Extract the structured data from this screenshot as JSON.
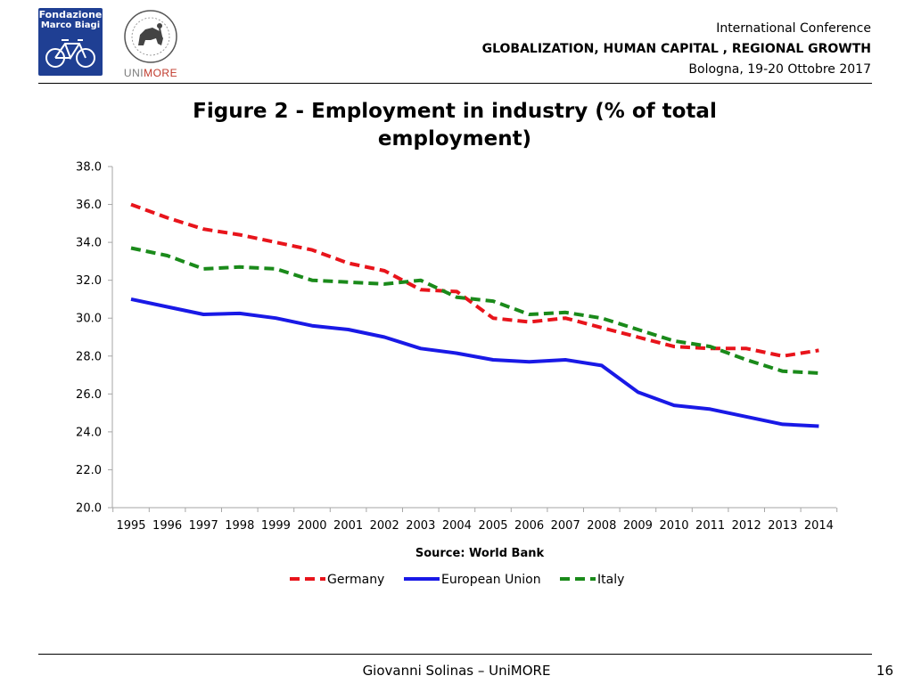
{
  "header": {
    "logo_left": {
      "line1": "Fondazione",
      "line2": "Marco Biagi"
    },
    "logo_right": {
      "prefix": "UNI",
      "suffix": "MORE"
    },
    "line1": "International Conference",
    "line2": "GLOBALIZATION, HUMAN CAPITAL , REGIONAL GROWTH",
    "line3": "Bologna, 19-20 Ottobre 2017"
  },
  "figure": {
    "title": "Figure 2 - Employment in industry (% of total employment)"
  },
  "chart_data": {
    "type": "line",
    "title": "Figure 2 - Employment in industry (% of total employment)",
    "xlabel": "Source: World Bank",
    "ylabel": "",
    "categories": [
      "1995",
      "1996",
      "1997",
      "1998",
      "1999",
      "2000",
      "2001",
      "2002",
      "2003",
      "2004",
      "2005",
      "2006",
      "2007",
      "2008",
      "2009",
      "2010",
      "2011",
      "2012",
      "2013",
      "2014"
    ],
    "ylim": [
      20,
      38
    ],
    "yticks": [
      "20.0",
      "22.0",
      "24.0",
      "26.0",
      "28.0",
      "30.0",
      "32.0",
      "34.0",
      "36.0",
      "38.0"
    ],
    "grid": false,
    "legend_position": "bottom",
    "series": [
      {
        "name": "Germany",
        "color": "#e8141b",
        "style": "dashed",
        "values": [
          36.0,
          35.3,
          34.7,
          34.4,
          34.0,
          33.6,
          32.9,
          32.5,
          31.5,
          31.4,
          30.0,
          29.8,
          30.0,
          29.5,
          29.0,
          28.5,
          28.4,
          28.4,
          28.0,
          28.3
        ]
      },
      {
        "name": "European Union",
        "color": "#1919e6",
        "style": "solid",
        "values": [
          31.0,
          30.6,
          30.2,
          30.25,
          30.0,
          29.6,
          29.4,
          29.0,
          28.4,
          28.15,
          27.8,
          27.7,
          27.8,
          27.5,
          26.1,
          25.4,
          25.2,
          24.8,
          24.4,
          24.3
        ]
      },
      {
        "name": "Italy",
        "color": "#1a8a1a",
        "style": "dashed",
        "values": [
          33.7,
          33.3,
          32.6,
          32.7,
          32.6,
          32.0,
          31.9,
          31.8,
          32.0,
          31.1,
          30.9,
          30.2,
          30.3,
          30.0,
          29.4,
          28.8,
          28.5,
          27.8,
          27.2,
          27.1
        ]
      }
    ]
  },
  "footer": {
    "author": "Giovanni Solinas – UniMORE",
    "page": "16"
  }
}
